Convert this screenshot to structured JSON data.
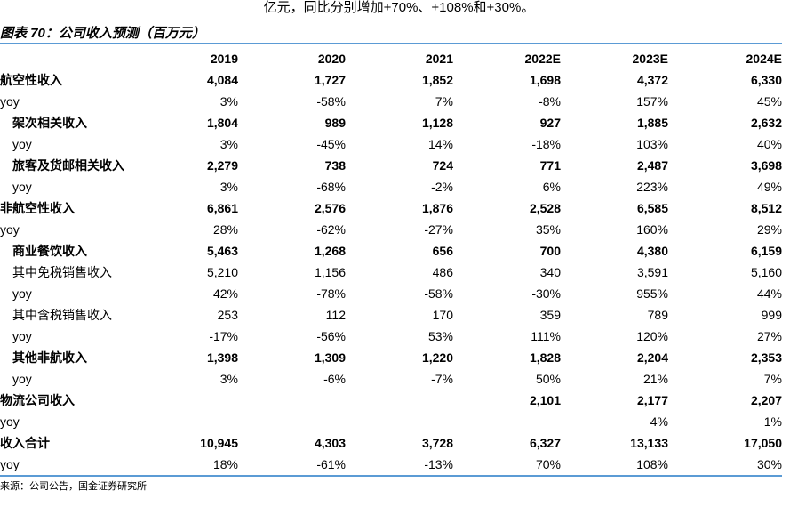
{
  "top_text": "亿元，同比分别增加+70%、+108%和+30%。",
  "title": "图表 70：公司收入预测（百万元）",
  "headers": [
    "",
    "2019",
    "2020",
    "2021",
    "2022E",
    "2023E",
    "2024E"
  ],
  "rows": [
    {
      "label": "航空性收入",
      "indent": 0,
      "bold": true,
      "values": [
        "4,084",
        "1,727",
        "1,852",
        "1,698",
        "4,372",
        "6,330"
      ]
    },
    {
      "label": "yoy",
      "indent": 0,
      "bold": false,
      "values": [
        "3%",
        "-58%",
        "7%",
        "-8%",
        "157%",
        "45%"
      ]
    },
    {
      "label": "架次相关收入",
      "indent": 1,
      "bold": true,
      "values": [
        "1,804",
        "989",
        "1,128",
        "927",
        "1,885",
        "2,632"
      ]
    },
    {
      "label": "yoy",
      "indent": 1,
      "bold": false,
      "values": [
        "3%",
        "-45%",
        "14%",
        "-18%",
        "103%",
        "40%"
      ]
    },
    {
      "label": "旅客及货邮相关收入",
      "indent": 1,
      "bold": true,
      "values": [
        "2,279",
        "738",
        "724",
        "771",
        "2,487",
        "3,698"
      ]
    },
    {
      "label": "yoy",
      "indent": 1,
      "bold": false,
      "values": [
        "3%",
        "-68%",
        "-2%",
        "6%",
        "223%",
        "49%"
      ]
    },
    {
      "label": "非航空性收入",
      "indent": 0,
      "bold": true,
      "values": [
        "6,861",
        "2,576",
        "1,876",
        "2,528",
        "6,585",
        "8,512"
      ]
    },
    {
      "label": "yoy",
      "indent": 0,
      "bold": false,
      "values": [
        "28%",
        "-62%",
        "-27%",
        "35%",
        "160%",
        "29%"
      ]
    },
    {
      "label": "商业餐饮收入",
      "indent": 1,
      "bold": true,
      "values": [
        "5,463",
        "1,268",
        "656",
        "700",
        "4,380",
        "6,159"
      ]
    },
    {
      "label": "其中免税销售收入",
      "indent": 1,
      "bold": false,
      "values": [
        "5,210",
        "1,156",
        "486",
        "340",
        "3,591",
        "5,160"
      ]
    },
    {
      "label": "yoy",
      "indent": 1,
      "bold": false,
      "values": [
        "42%",
        "-78%",
        "-58%",
        "-30%",
        "955%",
        "44%"
      ]
    },
    {
      "label": "其中含税销售收入",
      "indent": 1,
      "bold": false,
      "values": [
        "253",
        "112",
        "170",
        "359",
        "789",
        "999"
      ]
    },
    {
      "label": "yoy",
      "indent": 1,
      "bold": false,
      "values": [
        "-17%",
        "-56%",
        "53%",
        "111%",
        "120%",
        "27%"
      ]
    },
    {
      "label": "其他非航收入",
      "indent": 1,
      "bold": true,
      "values": [
        "1,398",
        "1,309",
        "1,220",
        "1,828",
        "2,204",
        "2,353"
      ]
    },
    {
      "label": "yoy",
      "indent": 1,
      "bold": false,
      "values": [
        "3%",
        "-6%",
        "-7%",
        "50%",
        "21%",
        "7%"
      ]
    },
    {
      "label": "物流公司收入",
      "indent": 0,
      "bold": true,
      "values": [
        "",
        "",
        "",
        "2,101",
        "2,177",
        "2,207"
      ]
    },
    {
      "label": "yoy",
      "indent": 0,
      "bold": false,
      "values": [
        "",
        "",
        "",
        "",
        "4%",
        "1%"
      ]
    },
    {
      "label": "收入合计",
      "indent": 0,
      "bold": true,
      "values": [
        "10,945",
        "4,303",
        "3,728",
        "6,327",
        "13,133",
        "17,050"
      ]
    },
    {
      "label": "yoy",
      "indent": 0,
      "bold": false,
      "values": [
        "18%",
        "-61%",
        "-13%",
        "70%",
        "108%",
        "30%"
      ]
    }
  ],
  "source": "来源：公司公告，国金证券研究所",
  "accent_color": "#5b9bd5"
}
